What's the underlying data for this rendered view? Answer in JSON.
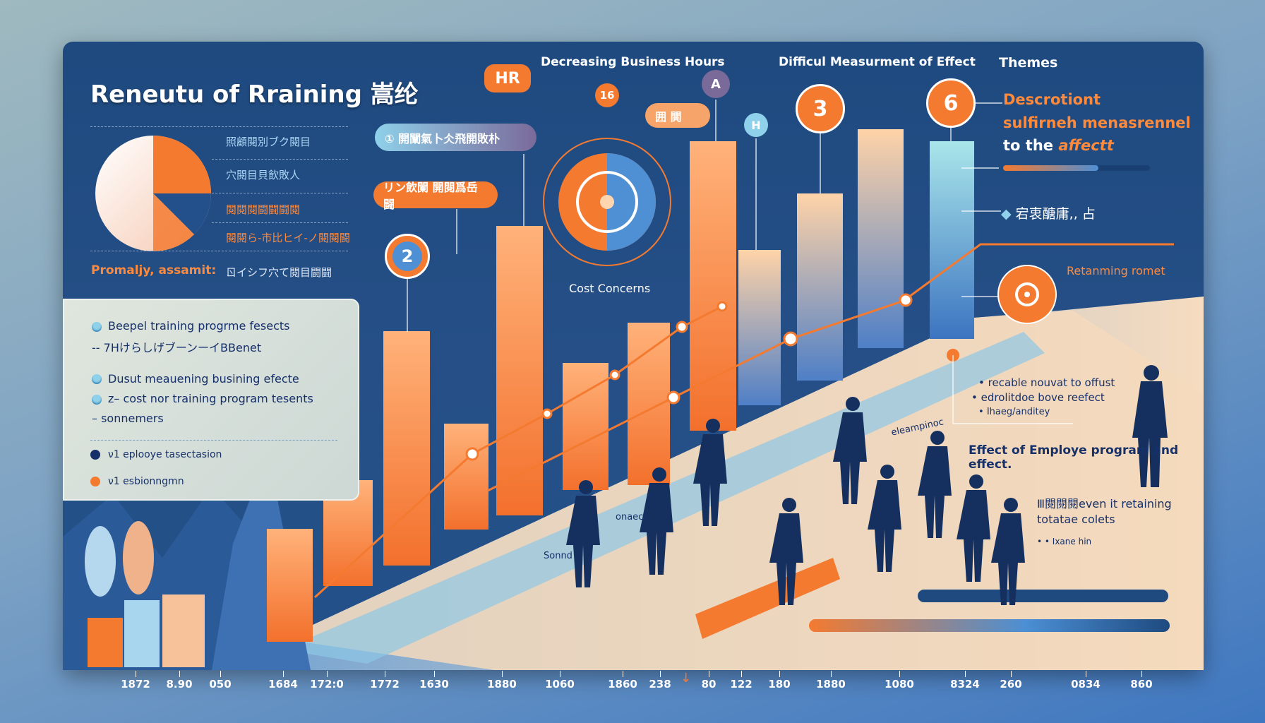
{
  "title": "Reneutu of Rraining 嵩纶",
  "left_legend": [
    {
      "text": "照顧閱別ブク閱目",
      "color": "#a9d6f5"
    },
    {
      "text": "穴閱目貝飲敗人",
      "color": "#a9d6f5"
    },
    {
      "text": "閱閱閱闘闘闘閱",
      "color": "#ff8a3c"
    },
    {
      "text": "閱閱ら-市比ヒイ-ノ閱閱闘",
      "color": "#ff8a3c"
    }
  ],
  "prominent_label": "Promaljy, assamit:",
  "prominent_value": "ㄖイシフ穴て閱目闘闘",
  "left_box": {
    "items": [
      {
        "text": "Beepel training progrme fesects",
        "bullet": "circle"
      },
      {
        "text": "7HけらしげブーンーイBBenet",
        "bullet": "dash"
      },
      {
        "text": "Dusut meauening busining efecte",
        "bullet": "circle"
      },
      {
        "text": "z– cost nor training program tesents",
        "bullet": "circle"
      },
      {
        "text": "sonnemers",
        "bullet": "dash"
      }
    ],
    "legend": [
      {
        "text": "ν1 eplooye tasectasion",
        "color": "#17306a"
      },
      {
        "text": "ν1 esbionngmn",
        "color": "#f47a30"
      }
    ]
  },
  "top_labels": {
    "decreasing": "Decreasing Business Hours",
    "difficult": "Difficul Measurment of Effect",
    "themes": "Themes"
  },
  "pills": {
    "teal": "① 開闡氣卜仌飛開敗朴",
    "orange": "リン飲闌 開閱爲岳闘",
    "small": "囲 閧"
  },
  "badges": {
    "hr": "HR",
    "b16": "16",
    "a": "A",
    "h": "H",
    "three": "3",
    "six": "6",
    "two": "2"
  },
  "cost_concerns": "Cost Concerns",
  "right_panel": {
    "desc_lines": [
      "Descrotiont",
      "sulfirneh menasrennel",
      "to the "
    ],
    "desc_highlight": "affectt",
    "diamond_item": "宕衷醣庸,, 占",
    "retaining": "Retanming romet",
    "bullets": [
      "recable nouvat to offust",
      "edrolitdoe bove reefect",
      "Ihaeg/anditey"
    ],
    "effect_heading": "Effect of Employe program and effect.",
    "note_lines": [
      "Ⅲ閱閱閱even it retaining",
      "totatae colets"
    ],
    "note_small": "• • Ixane hin"
  },
  "scene_labels": {
    "a": "eleampinoc",
    "b": "Sonnd",
    "c": "onaect"
  },
  "axis_ticks": [
    "1872",
    "8.90",
    "050",
    "1684",
    "172:0",
    "1772",
    "1630",
    "1880",
    "1060",
    "1860",
    "238",
    "80",
    "122",
    "180",
    "1880",
    "1080",
    "8324",
    "260",
    "0834",
    "860"
  ],
  "colors": {
    "orange": "#f47a30",
    "navy": "#1e4a80",
    "sky": "#7fc6e8",
    "cream": "#f6dcc0"
  },
  "progress_fill_percent": 65
}
